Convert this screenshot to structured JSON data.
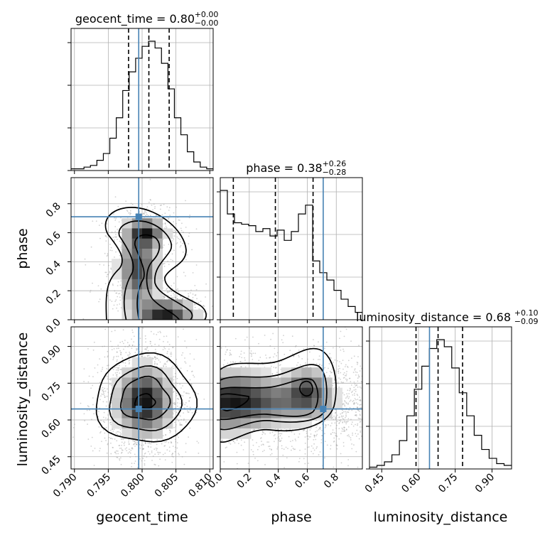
{
  "chart_data": {
    "type": "corner",
    "parameters": [
      "geocent_time",
      "phase",
      "luminosity_distance"
    ],
    "ranges": {
      "geocent_time": [
        0.7895,
        0.8105
      ],
      "phase": [
        0.0,
        0.98
      ],
      "luminosity_distance": [
        0.4,
        0.98
      ]
    },
    "truths": {
      "geocent_time": 0.7995,
      "phase": 0.71,
      "luminosity_distance": 0.645
    },
    "quantiles": {
      "geocent_time": [
        0.798,
        0.801,
        0.804
      ],
      "phase": [
        0.09,
        0.38,
        0.64
      ],
      "luminosity_distance": [
        0.59,
        0.68,
        0.78
      ]
    },
    "titles": {
      "geocent_time": {
        "label": "geocent_time = 0.80",
        "upper": "+0.00",
        "lower": "−0.00"
      },
      "phase": {
        "label": "phase = 0.38",
        "upper": "+0.26",
        "lower": "−0.28"
      },
      "luminosity_distance": {
        "label": "luminosity_distance = 0.68",
        "upper": "+0.10",
        "lower": "−0.09"
      }
    },
    "ticks": {
      "geocent_time": [
        "0.790",
        "0.795",
        "0.800",
        "0.805",
        "0.810"
      ],
      "phase": [
        "0.0",
        "0.2",
        "0.4",
        "0.6",
        "0.8"
      ],
      "luminosity_distance": [
        "0.45",
        "0.60",
        "0.75",
        "0.90"
      ]
    },
    "histograms": {
      "geocent_time": {
        "x0": 0.7895,
        "x1": 0.8105,
        "values": [
          1,
          1,
          2,
          3,
          6,
          10,
          19,
          31,
          47,
          58,
          66,
          73,
          76,
          72,
          63,
          48,
          31,
          21,
          11,
          5,
          2,
          1
        ]
      },
      "phase": {
        "x0": 0.0,
        "x1": 0.98,
        "values": [
          88,
          72,
          66,
          65,
          64,
          60,
          62,
          57,
          61,
          54,
          60,
          72,
          78,
          40,
          32,
          27,
          20,
          14,
          9,
          5
        ]
      },
      "luminosity_distance": {
        "x0": 0.4,
        "x1": 0.98,
        "values": [
          1,
          2,
          4,
          8,
          16,
          30,
          45,
          58,
          68,
          73,
          69,
          57,
          43,
          30,
          19,
          11,
          6,
          3,
          2
        ]
      }
    }
  }
}
